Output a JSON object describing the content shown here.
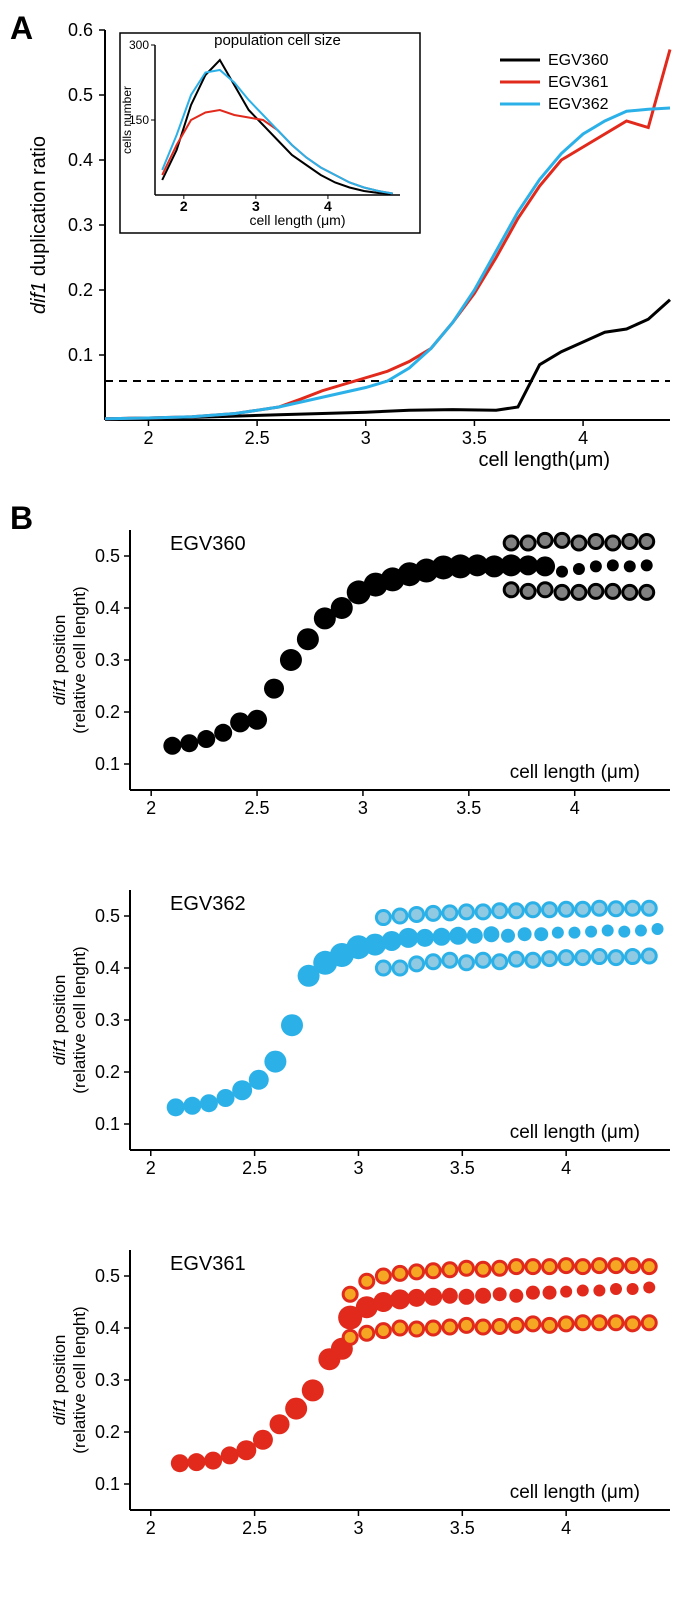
{
  "panelA": {
    "label": "A",
    "ylabel_html": "dif1 duplication ratio",
    "xlabel": "cell length(μm)",
    "xlim": [
      1.8,
      4.4
    ],
    "ylim": [
      0,
      0.6
    ],
    "xticks": [
      2,
      2.5,
      3,
      3.5,
      4
    ],
    "yticks": [
      0.1,
      0.2,
      0.3,
      0.4,
      0.5,
      0.6
    ],
    "dashed_y": 0.06,
    "legend": [
      {
        "label": "EGV360",
        "color": "#000000"
      },
      {
        "label": "EGV361",
        "color": "#e1291c"
      },
      {
        "label": "EGV362",
        "color": "#2bb1e8"
      }
    ],
    "series": {
      "EGV360": {
        "color": "#000000",
        "x": [
          1.8,
          2.0,
          2.2,
          2.4,
          2.6,
          2.8,
          3.0,
          3.2,
          3.4,
          3.6,
          3.7,
          3.8,
          3.9,
          4.0,
          4.1,
          4.2,
          4.3,
          4.4
        ],
        "y": [
          0.002,
          0.003,
          0.004,
          0.006,
          0.008,
          0.01,
          0.012,
          0.015,
          0.016,
          0.015,
          0.02,
          0.085,
          0.105,
          0.12,
          0.135,
          0.14,
          0.155,
          0.185
        ]
      },
      "EGV361": {
        "color": "#e1291c",
        "x": [
          1.8,
          2.0,
          2.2,
          2.4,
          2.6,
          2.7,
          2.8,
          2.9,
          3.0,
          3.1,
          3.2,
          3.3,
          3.4,
          3.5,
          3.6,
          3.7,
          3.8,
          3.9,
          4.0,
          4.1,
          4.2,
          4.3,
          4.4
        ],
        "y": [
          0.002,
          0.003,
          0.005,
          0.01,
          0.02,
          0.032,
          0.045,
          0.055,
          0.065,
          0.075,
          0.09,
          0.11,
          0.15,
          0.195,
          0.25,
          0.31,
          0.36,
          0.4,
          0.42,
          0.44,
          0.46,
          0.45,
          0.57
        ]
      },
      "EGV362": {
        "color": "#2bb1e8",
        "x": [
          1.8,
          2.0,
          2.2,
          2.4,
          2.6,
          2.8,
          3.0,
          3.1,
          3.2,
          3.3,
          3.4,
          3.5,
          3.6,
          3.7,
          3.8,
          3.9,
          4.0,
          4.1,
          4.2,
          4.3,
          4.4
        ],
        "y": [
          0.002,
          0.003,
          0.005,
          0.01,
          0.02,
          0.035,
          0.05,
          0.06,
          0.08,
          0.11,
          0.15,
          0.2,
          0.26,
          0.32,
          0.37,
          0.41,
          0.44,
          0.46,
          0.475,
          0.478,
          0.48
        ]
      }
    },
    "inset": {
      "title": "population cell size",
      "xlabel": "cell length (μm)",
      "ylabel": "cells number",
      "xlim": [
        1.6,
        5.0
      ],
      "ylim": [
        0,
        300
      ],
      "xticks": [
        2,
        3,
        4
      ],
      "yticks": [
        150,
        300
      ],
      "series": {
        "EGV360": {
          "color": "#000000",
          "x": [
            1.7,
            1.9,
            2.1,
            2.3,
            2.5,
            2.7,
            2.9,
            3.1,
            3.3,
            3.5,
            3.7,
            3.9,
            4.1,
            4.3,
            4.5,
            4.7,
            4.9
          ],
          "y": [
            30,
            90,
            180,
            240,
            270,
            220,
            170,
            140,
            110,
            80,
            60,
            40,
            25,
            15,
            8,
            4,
            2
          ]
        },
        "EGV361": {
          "color": "#e1291c",
          "x": [
            1.7,
            1.9,
            2.1,
            2.3,
            2.5,
            2.7,
            2.9,
            3.1,
            3.3,
            3.5,
            3.7,
            3.9,
            4.1,
            4.3,
            4.5,
            4.7,
            4.9
          ],
          "y": [
            40,
            100,
            150,
            165,
            170,
            160,
            155,
            150,
            130,
            100,
            75,
            55,
            40,
            25,
            15,
            8,
            3
          ]
        },
        "EGV362": {
          "color": "#2bb1e8",
          "x": [
            1.7,
            1.9,
            2.1,
            2.3,
            2.5,
            2.7,
            2.9,
            3.1,
            3.3,
            3.5,
            3.7,
            3.9,
            4.1,
            4.3,
            4.5,
            4.7,
            4.9
          ],
          "y": [
            50,
            120,
            200,
            245,
            250,
            225,
            190,
            160,
            130,
            100,
            75,
            55,
            40,
            25,
            15,
            8,
            3
          ]
        }
      }
    }
  },
  "panelB": {
    "label": "B",
    "charts": [
      {
        "name": "EGV360",
        "color": "#000000",
        "dup_fill": "#808080",
        "dup_stroke": "#000000",
        "xlim": [
          1.9,
          4.45
        ],
        "ylim": [
          0.05,
          0.55
        ],
        "xticks": [
          2,
          2.5,
          3,
          3.5,
          4
        ],
        "yticks": [
          0.1,
          0.2,
          0.3,
          0.4,
          0.5
        ],
        "xlabel": "cell length (μm)",
        "ylabel_top": "dif1 position",
        "ylabel_bottom": "(relative cell lenght)",
        "single": {
          "x": [
            2.1,
            2.18,
            2.26,
            2.34,
            2.42,
            2.5,
            2.58,
            2.66,
            2.74,
            2.82,
            2.9,
            2.98,
            3.06,
            3.14,
            3.22,
            3.3,
            3.38,
            3.46,
            3.54,
            3.62,
            3.7,
            3.78,
            3.86,
            3.94,
            4.02,
            4.1,
            4.18,
            4.26,
            4.34
          ],
          "y": [
            0.135,
            0.14,
            0.148,
            0.16,
            0.18,
            0.185,
            0.245,
            0.3,
            0.34,
            0.38,
            0.4,
            0.43,
            0.445,
            0.455,
            0.465,
            0.472,
            0.478,
            0.48,
            0.482,
            0.48,
            0.482,
            0.482,
            0.48,
            0.47,
            0.475,
            0.48,
            0.482,
            0.48,
            0.482
          ],
          "r": [
            9,
            9,
            9,
            9,
            10,
            10,
            10,
            11,
            11,
            11,
            11,
            12,
            12,
            12,
            12,
            12,
            12,
            12,
            11,
            11,
            11,
            10,
            10,
            6,
            6,
            6,
            6,
            6,
            6
          ]
        },
        "dup": {
          "x": [
            3.7,
            3.78,
            3.86,
            3.94,
            4.02,
            4.1,
            4.18,
            4.26,
            4.34
          ],
          "y_top": [
            0.525,
            0.525,
            0.53,
            0.53,
            0.525,
            0.528,
            0.525,
            0.528,
            0.528
          ],
          "y_bot": [
            0.435,
            0.432,
            0.435,
            0.43,
            0.43,
            0.432,
            0.432,
            0.43,
            0.43
          ],
          "r": 7
        }
      },
      {
        "name": "EGV362",
        "color": "#2bb1e8",
        "dup_fill": "#8fc9e2",
        "dup_stroke": "#2bb1e8",
        "xlim": [
          1.9,
          4.5
        ],
        "ylim": [
          0.05,
          0.55
        ],
        "xticks": [
          2,
          2.5,
          3,
          3.5,
          4
        ],
        "yticks": [
          0.1,
          0.2,
          0.3,
          0.4,
          0.5
        ],
        "xlabel": "cell length (μm)",
        "ylabel_top": "dif1 position",
        "ylabel_bottom": "(relative cell lenght)",
        "single": {
          "x": [
            2.12,
            2.2,
            2.28,
            2.36,
            2.44,
            2.52,
            2.6,
            2.68,
            2.76,
            2.84,
            2.92,
            3.0,
            3.08,
            3.16,
            3.24,
            3.32,
            3.4,
            3.48,
            3.56,
            3.64,
            3.72,
            3.8,
            3.88,
            3.96,
            4.04,
            4.12,
            4.2,
            4.28,
            4.36,
            4.44
          ],
          "y": [
            0.132,
            0.135,
            0.14,
            0.15,
            0.165,
            0.185,
            0.22,
            0.29,
            0.385,
            0.41,
            0.425,
            0.44,
            0.445,
            0.452,
            0.458,
            0.458,
            0.46,
            0.462,
            0.462,
            0.465,
            0.462,
            0.465,
            0.465,
            0.468,
            0.468,
            0.47,
            0.472,
            0.47,
            0.472,
            0.475
          ],
          "r": [
            9,
            9,
            9,
            9,
            10,
            10,
            11,
            11,
            11,
            12,
            12,
            12,
            11,
            10,
            10,
            9,
            9,
            9,
            8,
            8,
            7,
            7,
            7,
            6,
            6,
            6,
            6,
            6,
            6,
            6
          ]
        },
        "dup": {
          "x": [
            3.12,
            3.2,
            3.28,
            3.36,
            3.44,
            3.52,
            3.6,
            3.68,
            3.76,
            3.84,
            3.92,
            4.0,
            4.08,
            4.16,
            4.24,
            4.32,
            4.4
          ],
          "y_top": [
            0.497,
            0.5,
            0.503,
            0.505,
            0.506,
            0.508,
            0.508,
            0.51,
            0.51,
            0.512,
            0.512,
            0.513,
            0.513,
            0.515,
            0.514,
            0.515,
            0.515
          ],
          "y_bot": [
            0.4,
            0.4,
            0.408,
            0.412,
            0.415,
            0.41,
            0.415,
            0.412,
            0.417,
            0.415,
            0.418,
            0.42,
            0.42,
            0.422,
            0.42,
            0.422,
            0.423
          ],
          "r": 7
        }
      },
      {
        "name": "EGV361",
        "color": "#e1291c",
        "dup_fill": "#f5a623",
        "dup_stroke": "#e1291c",
        "xlim": [
          1.9,
          4.5
        ],
        "ylim": [
          0.05,
          0.55
        ],
        "xticks": [
          2,
          2.5,
          3,
          3.5,
          4
        ],
        "yticks": [
          0.1,
          0.2,
          0.3,
          0.4,
          0.5
        ],
        "xlabel": "cell length (μm)",
        "ylabel_top": "dif1 position",
        "ylabel_bottom": "(relative cell lenght)",
        "single": {
          "x": [
            2.14,
            2.22,
            2.3,
            2.38,
            2.46,
            2.54,
            2.62,
            2.7,
            2.78,
            2.86,
            2.92,
            2.96,
            3.04,
            3.12,
            3.2,
            3.28,
            3.36,
            3.44,
            3.52,
            3.6,
            3.68,
            3.76,
            3.84,
            3.92,
            4.0,
            4.08,
            4.16,
            4.24,
            4.32,
            4.4
          ],
          "y": [
            0.14,
            0.142,
            0.145,
            0.155,
            0.165,
            0.185,
            0.215,
            0.245,
            0.28,
            0.34,
            0.36,
            0.42,
            0.44,
            0.45,
            0.455,
            0.458,
            0.46,
            0.462,
            0.46,
            0.462,
            0.465,
            0.462,
            0.468,
            0.468,
            0.47,
            0.472,
            0.472,
            0.475,
            0.475,
            0.478
          ],
          "r": [
            9,
            9,
            9,
            9,
            10,
            10,
            10,
            11,
            11,
            11,
            11,
            12,
            11,
            10,
            10,
            9,
            9,
            8,
            8,
            8,
            7,
            7,
            7,
            7,
            6,
            6,
            6,
            6,
            6,
            6
          ]
        },
        "dup": {
          "x": [
            2.96,
            3.04,
            3.12,
            3.2,
            3.28,
            3.36,
            3.44,
            3.52,
            3.6,
            3.68,
            3.76,
            3.84,
            3.92,
            4.0,
            4.08,
            4.16,
            4.24,
            4.32,
            4.4
          ],
          "y_top": [
            0.465,
            0.49,
            0.5,
            0.505,
            0.508,
            0.51,
            0.512,
            0.515,
            0.513,
            0.515,
            0.518,
            0.518,
            0.518,
            0.52,
            0.518,
            0.52,
            0.52,
            0.52,
            0.518
          ],
          "y_bot": [
            0.382,
            0.39,
            0.395,
            0.4,
            0.398,
            0.4,
            0.402,
            0.405,
            0.402,
            0.403,
            0.405,
            0.408,
            0.405,
            0.408,
            0.41,
            0.41,
            0.41,
            0.408,
            0.41
          ],
          "r": 7
        }
      }
    ]
  }
}
